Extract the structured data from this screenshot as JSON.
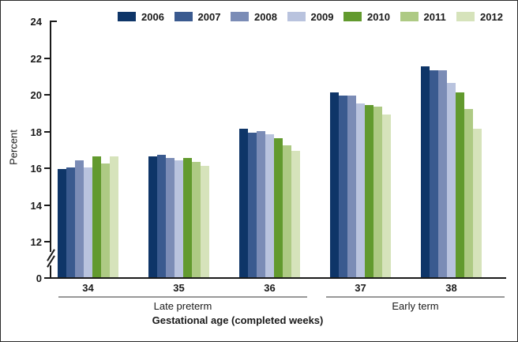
{
  "chart_data": {
    "type": "bar",
    "title": "",
    "ylabel": "Percent",
    "xlabel": "Gestational age (completed weeks)",
    "categories": [
      "34",
      "35",
      "36",
      "37",
      "38"
    ],
    "group_sections": [
      {
        "label": "Late preterm",
        "categories": [
          "34",
          "35",
          "36"
        ]
      },
      {
        "label": "Early term",
        "categories": [
          "37",
          "38"
        ]
      }
    ],
    "series": [
      {
        "name": "2006",
        "color": "#0E3568",
        "values": [
          15.9,
          16.6,
          18.1,
          20.1,
          21.5
        ]
      },
      {
        "name": "2007",
        "color": "#3A5A8F",
        "values": [
          16.0,
          16.7,
          17.9,
          19.9,
          21.3
        ]
      },
      {
        "name": "2008",
        "color": "#7B8CB6",
        "values": [
          16.4,
          16.5,
          18.0,
          19.9,
          21.3
        ]
      },
      {
        "name": "2009",
        "color": "#B9C3DE",
        "values": [
          16.0,
          16.4,
          17.8,
          19.5,
          20.6
        ]
      },
      {
        "name": "2010",
        "color": "#629A2E",
        "values": [
          16.6,
          16.5,
          17.6,
          19.4,
          20.1
        ]
      },
      {
        "name": "2011",
        "color": "#AECA84",
        "values": [
          16.2,
          16.3,
          17.2,
          19.3,
          19.2
        ]
      },
      {
        "name": "2012",
        "color": "#D6E3BB",
        "values": [
          16.6,
          16.1,
          16.9,
          18.9,
          18.1
        ]
      }
    ],
    "y_axis": {
      "tick_values": [
        24,
        22,
        20,
        18,
        16,
        14,
        12,
        0
      ],
      "axis_break_between": [
        12,
        0
      ]
    },
    "legend_position": "top",
    "grid": "off",
    "axis_color": "#1a1a1a",
    "section_line_color": "#999999"
  }
}
